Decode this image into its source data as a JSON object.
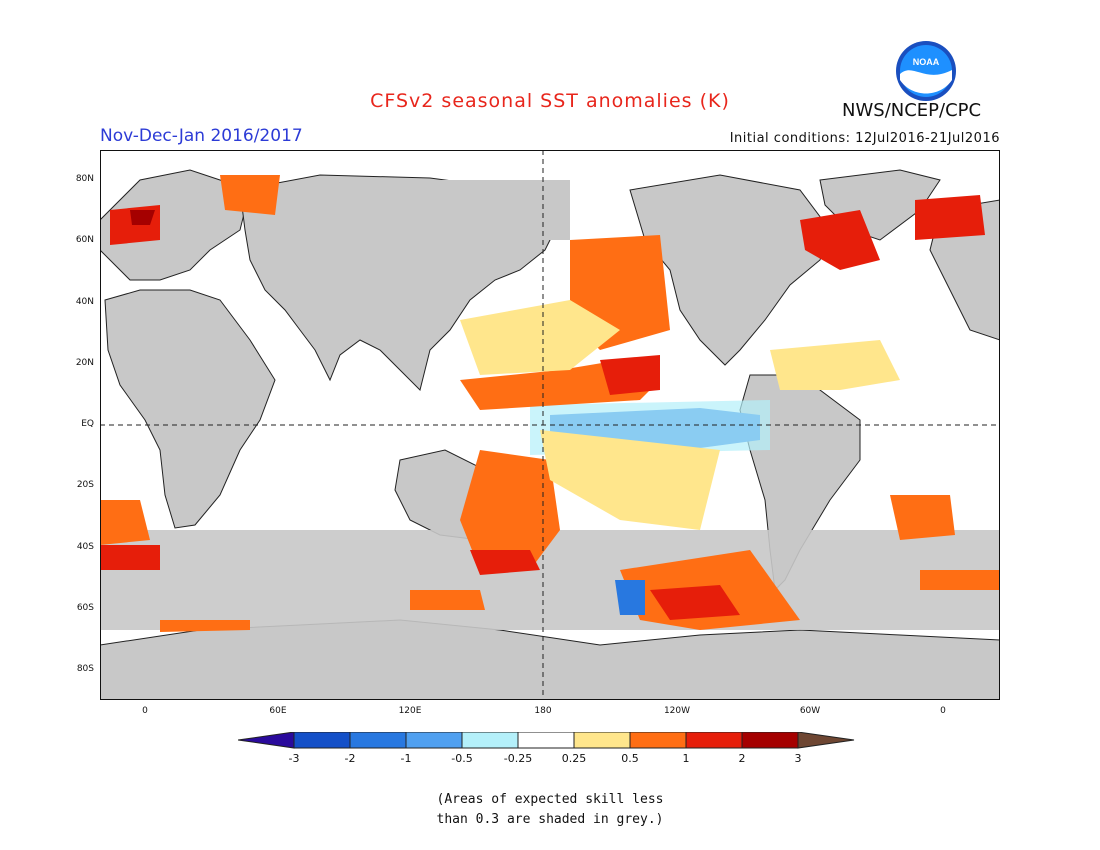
{
  "header": {
    "title": "CFSv2 seasonal SST anomalies (K)",
    "period": "Nov-Dec-Jan 2016/2017",
    "initial_conditions": "Initial conditions: 12Jul2016-21Jul2016",
    "agency": "NWS/NCEP/CPC",
    "logo_text": "NOAA"
  },
  "map": {
    "lat_labels": [
      "80N",
      "60N",
      "40N",
      "20N",
      "EQ",
      "20S",
      "40S",
      "60S",
      "80S"
    ],
    "lon_labels": [
      "0",
      "60E",
      "120E",
      "180",
      "120W",
      "60W",
      "0"
    ],
    "land_color": "#c8c8c8",
    "ocean_color": "#ffffff"
  },
  "colorbar": {
    "tick_labels": [
      "-3",
      "-2",
      "-1",
      "-0.5",
      "-0.25",
      "0.25",
      "0.5",
      "1",
      "2",
      "3"
    ],
    "colors": [
      "#2a0a9c",
      "#1450c8",
      "#2878e0",
      "#50a0f0",
      "#b4f0fa",
      "#ffffff",
      "#ffe68c",
      "#ff6e14",
      "#e61e0a",
      "#a50000",
      "#6e4632"
    ]
  },
  "note": {
    "line1": "(Areas of expected skill less",
    "line2": "than 0.3 are shaded in grey.)"
  }
}
